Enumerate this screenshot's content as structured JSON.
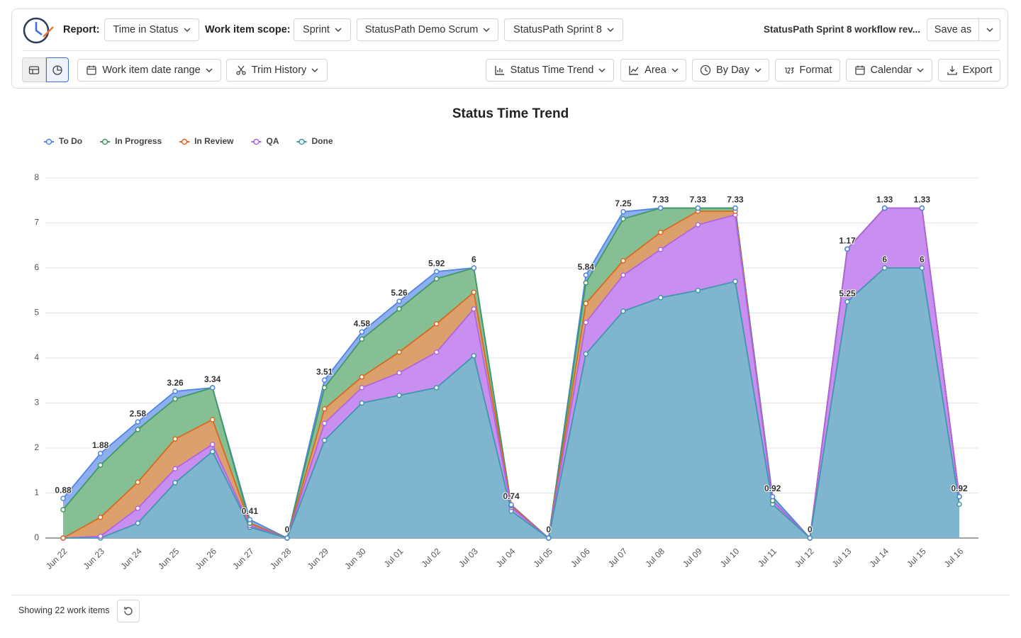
{
  "header": {
    "report_label": "Report:",
    "report": "Time in Status",
    "scope_label": "Work item scope:",
    "scope": "Sprint",
    "project": "StatusPath Demo Scrum",
    "sprint": "StatusPath Sprint 8",
    "view_name": "StatusPath Sprint 8 workflow rev...",
    "save_as": "Save as"
  },
  "toolbar": {
    "date_range": "Work item date range",
    "trim_history": "Trim History",
    "chart_kind": "Status Time Trend",
    "chart_style": "Area",
    "granularity": "By Day",
    "format": "Format",
    "calendar": "Calendar",
    "export": "Export"
  },
  "chart_data": {
    "type": "stacked-area",
    "title": "Status Time Trend",
    "categories": [
      "Jun 22",
      "Jun 23",
      "Jun 24",
      "Jun 25",
      "Jun 26",
      "Jun 27",
      "Jun 28",
      "Jun 29",
      "Jun 30",
      "Jul 01",
      "Jul 02",
      "Jul 03",
      "Jul 04",
      "Jul 05",
      "Jul 06",
      "Jul 07",
      "Jul 08",
      "Jul 09",
      "Jul 10",
      "Jul 11",
      "Jul 12",
      "Jul 13",
      "Jul 14",
      "Jul 15",
      "Jul 16"
    ],
    "series": [
      {
        "name": "To Do",
        "color": "#4f86e3",
        "fill": "#8eaef0",
        "values": [
          0.25,
          0.26,
          0.17,
          0.17,
          0,
          0.08,
          0,
          0.17,
          0.16,
          0.17,
          0.16,
          0,
          0.02,
          0,
          0.17,
          0.16,
          0,
          0,
          0,
          0.09,
          0,
          0,
          0,
          0,
          0
        ]
      },
      {
        "name": "In Progress",
        "color": "#3f9a62",
        "fill": "#86bf94",
        "values": [
          0.63,
          1.16,
          1.17,
          0.89,
          0.71,
          0,
          0,
          0.47,
          0.84,
          0.96,
          1.0,
          0.54,
          0,
          0,
          0.46,
          0.93,
          0.54,
          0.07,
          0.07,
          0,
          0,
          0,
          0,
          0,
          0
        ]
      },
      {
        "name": "In Review",
        "color": "#d8691f",
        "fill": "#dca06c",
        "values": [
          0,
          0.42,
          0.58,
          0.66,
          0.55,
          0.05,
          0,
          0.32,
          0.24,
          0.46,
          0.63,
          0.37,
          0.04,
          0,
          0.42,
          0.32,
          0.38,
          0.3,
          0.08,
          0,
          0,
          0,
          0,
          0,
          0
        ]
      },
      {
        "name": "QA",
        "color": "#b065e6",
        "fill": "#c88ef0",
        "values": [
          0,
          0.04,
          0.33,
          0.31,
          0.16,
          0.04,
          0,
          0.38,
          0.34,
          0.5,
          0.79,
          1.04,
          0.08,
          0,
          0.7,
          0.8,
          1.07,
          1.46,
          1.48,
          0.08,
          0,
          1.17,
          1.33,
          1.33,
          0.17
        ]
      },
      {
        "name": "Done",
        "color": "#3f97ae",
        "fill": "#80b5cf",
        "values": [
          0,
          0,
          0.33,
          1.23,
          1.92,
          0.24,
          0,
          2.17,
          3.0,
          3.17,
          3.34,
          4.05,
          0.6,
          0,
          4.09,
          5.04,
          5.34,
          5.5,
          5.7,
          0.75,
          0,
          5.25,
          6,
          6,
          0.75
        ]
      }
    ],
    "totals": [
      0.88,
      1.88,
      2.58,
      3.26,
      3.34,
      0.41,
      0,
      3.51,
      4.58,
      5.26,
      5.92,
      6,
      0.74,
      0,
      5.84,
      7.25,
      7.33,
      7.33,
      7.33,
      0.92,
      0,
      null,
      null,
      null,
      0.92
    ],
    "stacked": true,
    "grid": true,
    "legend": "top-left",
    "ylim": [
      0,
      8
    ],
    "yticks": [
      0,
      1,
      2,
      3,
      4,
      5,
      6,
      7,
      8
    ]
  },
  "footer": {
    "showing": "Showing 22 work items"
  }
}
